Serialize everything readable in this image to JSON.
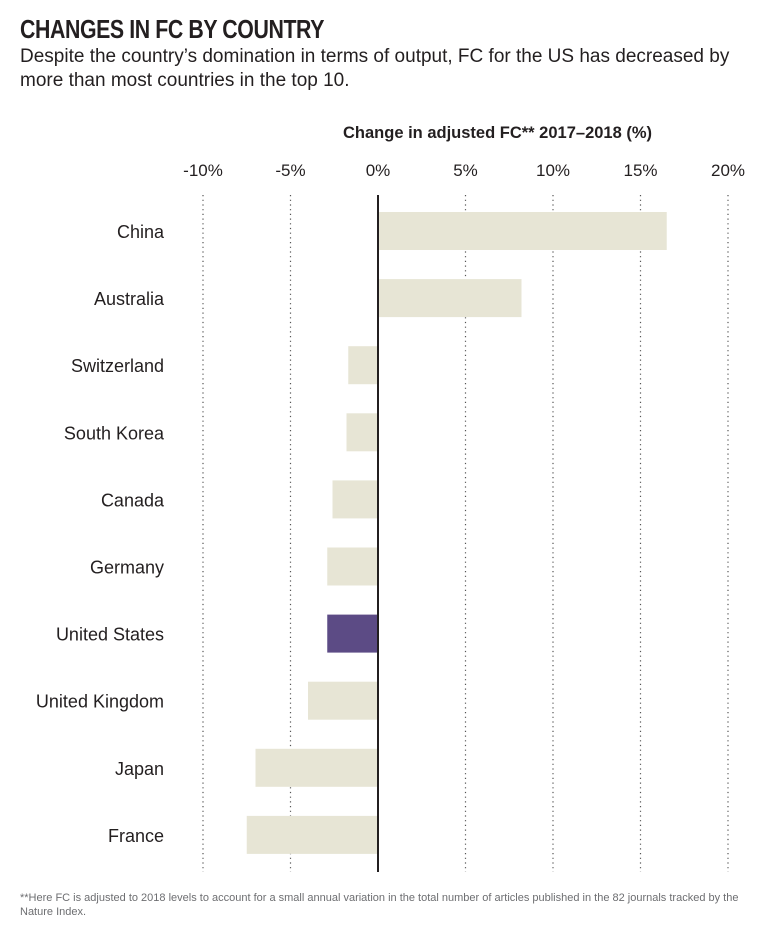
{
  "header": {
    "title": "CHANGES IN FC BY COUNTRY",
    "subtitle": "Despite the country’s domination in terms of output, FC for the US has decreased by more than most countries in the top 10."
  },
  "footnote": "**Here FC is adjusted to 2018 levels to account for a small annual variation in the total number of articles published in the 82 journals tracked by the Nature Index.",
  "colors": {
    "bar_default": "#e7e5d5",
    "bar_highlight": "#5c4b85",
    "zero_line": "#231f20",
    "grid": "#555555"
  },
  "chart_data": {
    "type": "bar",
    "orientation": "horizontal",
    "title": "CHANGES IN FC BY COUNTRY",
    "xlabel": "Change in adjusted FC** 2017–2018 (%)",
    "ylabel": "",
    "xlim": [
      -10,
      20
    ],
    "xticks": [
      -10,
      -5,
      0,
      5,
      10,
      15,
      20
    ],
    "xtick_labels": [
      "-10%",
      "-5%",
      "0%",
      "5%",
      "10%",
      "15%",
      "20%"
    ],
    "grid": "vertical dotted",
    "categories": [
      "China",
      "Australia",
      "Switzerland",
      "South Korea",
      "Canada",
      "Germany",
      "United States",
      "United Kingdom",
      "Japan",
      "France"
    ],
    "values": [
      16.5,
      8.2,
      -1.7,
      -1.8,
      -2.6,
      -2.9,
      -2.9,
      -4.0,
      -7.0,
      -7.5
    ],
    "highlight": "United States",
    "unit": "%"
  }
}
